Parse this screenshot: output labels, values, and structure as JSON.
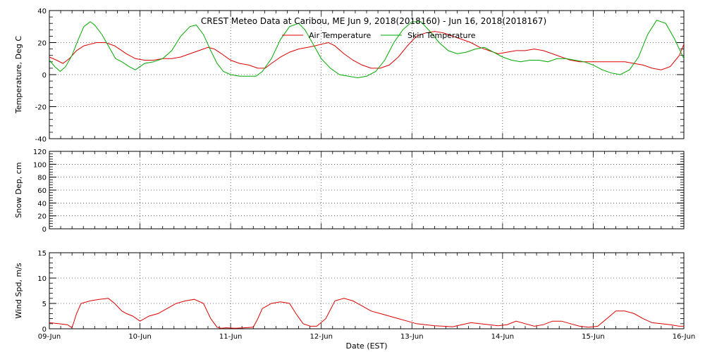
{
  "chart_data": [
    {
      "type": "line",
      "title": "CREST Meteo Data at Caribou, ME   Jun  9, 2018(2018160) - Jun 16, 2018(2018167)",
      "ylabel": "Temperature, Deg C",
      "ylim": [
        -40,
        40
      ],
      "yticks": [
        -40,
        -20,
        0,
        20,
        40
      ],
      "x_range_days": [
        0,
        7
      ],
      "grid": true,
      "legend_position": "top-center",
      "series": [
        {
          "name": "Air Temperature",
          "color": "#dd0000",
          "x": [
            0,
            0.08,
            0.15,
            0.22,
            0.3,
            0.38,
            0.45,
            0.52,
            0.62,
            0.72,
            0.85,
            0.95,
            1.05,
            1.15,
            1.25,
            1.35,
            1.45,
            1.55,
            1.65,
            1.75,
            1.82,
            1.9,
            2.0,
            2.1,
            2.2,
            2.3,
            2.38,
            2.45,
            2.55,
            2.65,
            2.75,
            2.85,
            2.93,
            3.0,
            3.08,
            3.15,
            3.25,
            3.35,
            3.45,
            3.55,
            3.65,
            3.75,
            3.85,
            3.95,
            4.05,
            4.15,
            4.25,
            4.35,
            4.45,
            4.55,
            4.65,
            4.75,
            4.85,
            4.95,
            5.05,
            5.15,
            5.25,
            5.35,
            5.45,
            5.55,
            5.65,
            5.75,
            5.85,
            5.95,
            6.05,
            6.15,
            6.25,
            6.35,
            6.45,
            6.55,
            6.65,
            6.75,
            6.85,
            6.95,
            7.0
          ],
          "y": [
            11,
            9,
            7,
            10,
            15,
            18,
            19,
            20,
            20,
            18,
            13,
            10,
            9,
            9,
            10,
            10,
            11,
            13,
            15,
            17,
            16,
            13,
            9,
            7,
            6,
            4,
            4,
            7,
            11,
            14,
            16,
            17,
            18,
            19,
            20,
            18,
            13,
            9,
            6,
            4,
            4,
            6,
            11,
            18,
            24,
            26,
            27,
            26,
            24,
            22,
            20,
            17,
            15,
            13,
            14,
            15,
            15,
            16,
            15,
            13,
            11,
            9,
            8,
            8,
            8,
            8,
            8,
            8,
            7,
            6,
            4,
            3,
            5,
            12,
            19
          ]
        },
        {
          "name": "Skin Temperature",
          "color": "#00aa00",
          "x": [
            0,
            0.06,
            0.12,
            0.18,
            0.25,
            0.32,
            0.38,
            0.45,
            0.5,
            0.58,
            0.66,
            0.73,
            0.8,
            0.88,
            0.95,
            1.05,
            1.15,
            1.25,
            1.35,
            1.45,
            1.55,
            1.62,
            1.7,
            1.78,
            1.85,
            1.92,
            2.0,
            2.1,
            2.2,
            2.28,
            2.35,
            2.45,
            2.55,
            2.65,
            2.75,
            2.82,
            2.9,
            3.0,
            3.1,
            3.2,
            3.3,
            3.4,
            3.5,
            3.6,
            3.7,
            3.8,
            3.9,
            4.0,
            4.1,
            4.2,
            4.3,
            4.4,
            4.5,
            4.6,
            4.7,
            4.8,
            4.9,
            5.0,
            5.1,
            5.2,
            5.3,
            5.4,
            5.5,
            5.6,
            5.7,
            5.8,
            5.9,
            6.0,
            6.1,
            6.2,
            6.3,
            6.4,
            6.5,
            6.6,
            6.7,
            6.8,
            6.9,
            7.0
          ],
          "y": [
            9,
            5,
            2,
            5,
            12,
            22,
            30,
            33,
            31,
            25,
            17,
            10,
            8,
            5,
            3,
            7,
            8,
            10,
            15,
            24,
            30,
            31,
            25,
            15,
            7,
            2,
            0,
            -1,
            -1,
            -1,
            2,
            10,
            22,
            30,
            32,
            28,
            20,
            10,
            4,
            0,
            -1,
            -2,
            -1,
            2,
            9,
            20,
            28,
            33,
            33,
            27,
            20,
            15,
            13,
            14,
            16,
            17,
            14,
            11,
            9,
            8,
            9,
            9,
            8,
            10,
            10,
            9,
            8,
            6,
            3,
            1,
            0,
            3,
            11,
            25,
            34,
            32,
            22,
            10
          ]
        }
      ]
    },
    {
      "type": "line",
      "ylabel": "Snow Dep, cm",
      "ylim": [
        0,
        120
      ],
      "yticks": [
        0,
        20,
        40,
        60,
        80,
        100,
        120
      ],
      "x_range_days": [
        0,
        7
      ],
      "grid": true,
      "series": []
    },
    {
      "type": "line",
      "ylabel": "Wind Spd, m/s",
      "xlabel": "Date (EST)",
      "ylim": [
        0,
        15
      ],
      "yticks": [
        0,
        5,
        10,
        15
      ],
      "x_range_days": [
        0,
        7
      ],
      "xtick_labels": [
        "09-Jun",
        "10-Jun",
        "11-Jun",
        "12-Jun",
        "13-Jun",
        "14-Jun",
        "15-Jun",
        "16-Jun"
      ],
      "grid": true,
      "series": [
        {
          "name": "Wind Speed",
          "color": "#dd0000",
          "x": [
            0,
            0.1,
            0.2,
            0.25,
            0.3,
            0.35,
            0.45,
            0.55,
            0.65,
            0.72,
            0.8,
            0.85,
            0.92,
            1.0,
            1.1,
            1.2,
            1.3,
            1.4,
            1.5,
            1.6,
            1.7,
            1.78,
            1.85,
            1.9,
            1.95,
            2.05,
            2.15,
            2.25,
            2.3,
            2.35,
            2.45,
            2.55,
            2.65,
            2.72,
            2.8,
            2.88,
            2.95,
            3.05,
            3.15,
            3.25,
            3.35,
            3.45,
            3.55,
            3.65,
            3.75,
            3.85,
            3.95,
            4.05,
            4.15,
            4.25,
            4.35,
            4.45,
            4.55,
            4.65,
            4.75,
            4.85,
            4.95,
            5.05,
            5.15,
            5.25,
            5.35,
            5.45,
            5.55,
            5.65,
            5.75,
            5.85,
            5.95,
            6.05,
            6.15,
            6.25,
            6.35,
            6.45,
            6.55,
            6.65,
            6.75,
            6.85,
            6.95,
            7.0
          ],
          "y": [
            1.2,
            1.0,
            0.8,
            0.2,
            3.0,
            5.0,
            5.5,
            5.8,
            6.0,
            5.0,
            3.5,
            3.0,
            2.5,
            1.5,
            2.5,
            3.0,
            4.0,
            5.0,
            5.5,
            5.8,
            5.0,
            2.0,
            0.3,
            0.1,
            0.2,
            0.1,
            0.2,
            0.3,
            2.0,
            4.0,
            5.0,
            5.3,
            5.0,
            3.0,
            1.0,
            0.5,
            0.5,
            2.0,
            5.5,
            6.0,
            5.5,
            4.5,
            3.5,
            3.0,
            2.5,
            2.0,
            1.5,
            1.0,
            0.8,
            0.6,
            0.5,
            0.4,
            0.8,
            1.2,
            1.0,
            0.8,
            0.6,
            0.8,
            1.5,
            1.0,
            0.5,
            0.8,
            1.5,
            1.5,
            1.0,
            0.5,
            0.3,
            0.5,
            2.0,
            3.5,
            3.5,
            3.0,
            2.0,
            1.2,
            1.0,
            0.8,
            0.5,
            0.5
          ]
        }
      ]
    }
  ]
}
